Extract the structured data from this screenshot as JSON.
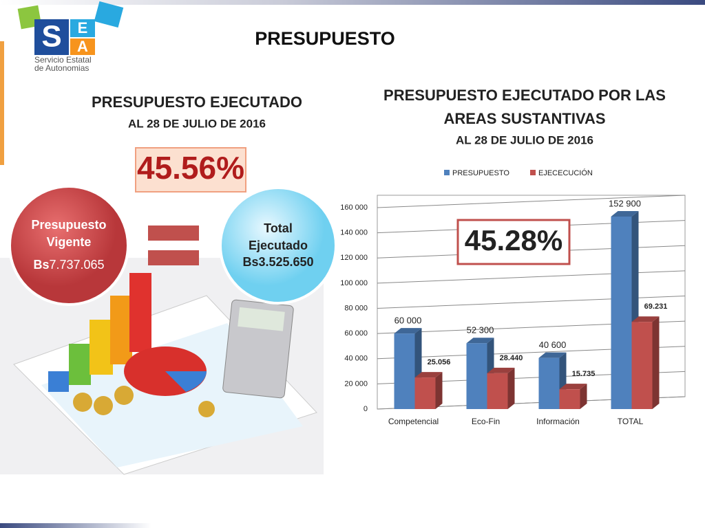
{
  "header": {
    "title": "PRESUPUESTO",
    "logo_letters": [
      "S",
      "E",
      "A"
    ],
    "logo_lines": [
      "Servicio Estatal",
      "de Autonomias"
    ]
  },
  "left_panel": {
    "title": "PRESUPUESTO EJECUTADO",
    "subtitle": "AL  28 DE JULIO DE 2016",
    "percentage": "45.56%",
    "vigente": {
      "lines": [
        "Presupuesto",
        "Vigente"
      ],
      "currency": "Bs",
      "amount": "7.737.065"
    },
    "ejecutado": {
      "lines": [
        "Total",
        "Ejecutado",
        "Bs3.525.650"
      ]
    }
  },
  "chart_data": {
    "type": "bar",
    "title": [
      "PRESUPUESTO EJECUTADO POR LAS",
      "AREAS SUSTANTIVAS"
    ],
    "subtitle": "AL 28 DE JULIO DE 2016",
    "annotation": "45.28%",
    "categories": [
      "Competencial",
      "Eco-Fin",
      "Información",
      "TOTAL"
    ],
    "series": [
      {
        "name": "PRESUPUESTO",
        "color": "#4f81bd",
        "values": [
          60000,
          52300,
          40600,
          152900
        ],
        "value_labels": [
          "60 000",
          "52 300",
          "40 600",
          "152 900"
        ]
      },
      {
        "name": "EJECECUCIÓN",
        "color": "#c0504d",
        "values": [
          25056,
          28440,
          15735,
          69231
        ],
        "value_labels": [
          "25.056",
          "28.440",
          "15.735",
          "69.231"
        ]
      }
    ],
    "ylim": [
      0,
      160000
    ],
    "yticks": [
      0,
      {
        "value": 20000,
        "label": "20 000"
      },
      {
        "value": 40000,
        "label": "40 000"
      },
      {
        "value": 60000,
        "label": "60 000"
      },
      {
        "value": 80000,
        "label": "80 000"
      },
      {
        "value": 100000,
        "label": "100 000"
      },
      {
        "value": 120000,
        "label": "120 000"
      },
      {
        "value": 140000,
        "label": "140 000"
      },
      {
        "value": 160000,
        "label": "160 000"
      }
    ],
    "grid": true,
    "legend": "top"
  }
}
